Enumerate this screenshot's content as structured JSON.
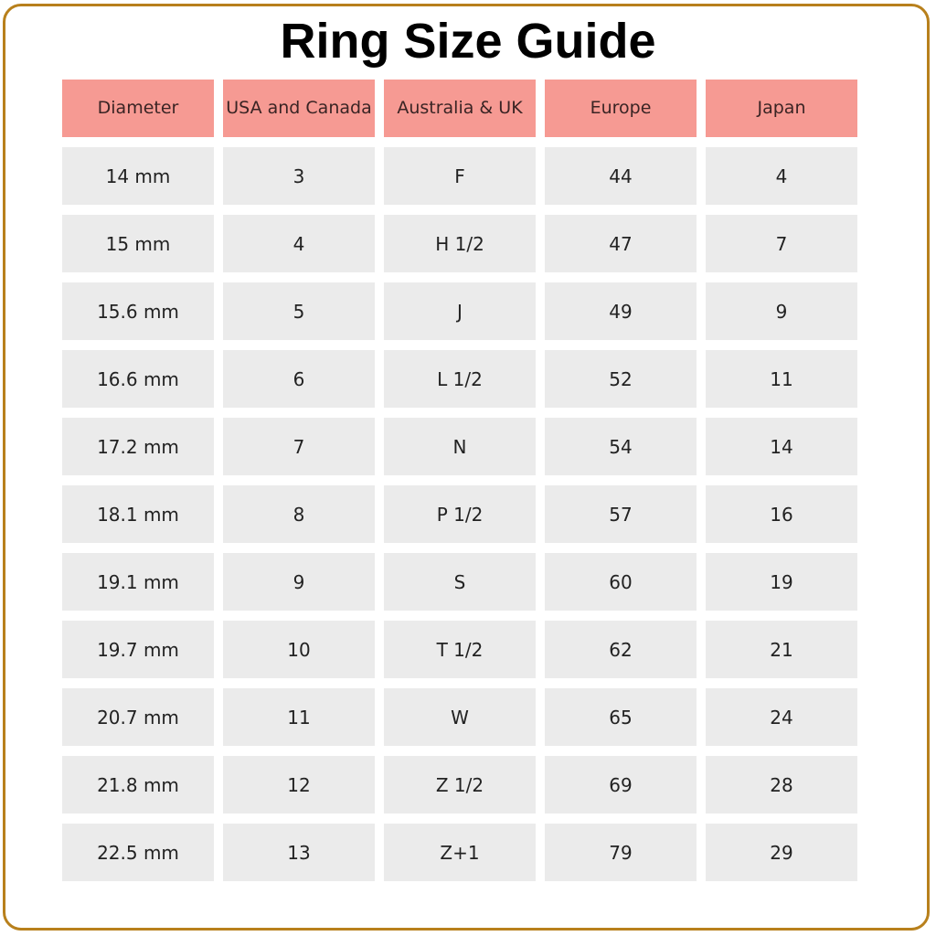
{
  "title": "Ring Size Guide",
  "colors": {
    "header_bg": "#f69a93",
    "cell_bg": "#ebebeb",
    "frame": "#b8801c"
  },
  "columns": [
    "Diameter",
    "USA and Canada",
    "Australia & UK",
    "Europe",
    "Japan"
  ],
  "rows": [
    [
      "14 mm",
      "3",
      "F",
      "44",
      "4"
    ],
    [
      "15 mm",
      "4",
      "H 1/2",
      "47",
      "7"
    ],
    [
      "15.6 mm",
      "5",
      "J",
      "49",
      "9"
    ],
    [
      "16.6 mm",
      "6",
      "L 1/2",
      "52",
      "11"
    ],
    [
      "17.2 mm",
      "7",
      "N",
      "54",
      "14"
    ],
    [
      "18.1 mm",
      "8",
      "P 1/2",
      "57",
      "16"
    ],
    [
      "19.1 mm",
      "9",
      "S",
      "60",
      "19"
    ],
    [
      "19.7 mm",
      "10",
      "T 1/2",
      "62",
      "21"
    ],
    [
      "20.7 mm",
      "11",
      "W",
      "65",
      "24"
    ],
    [
      "21.8 mm",
      "12",
      "Z 1/2",
      "69",
      "28"
    ],
    [
      "22.5 mm",
      "13",
      "Z+1",
      "79",
      "29"
    ]
  ]
}
